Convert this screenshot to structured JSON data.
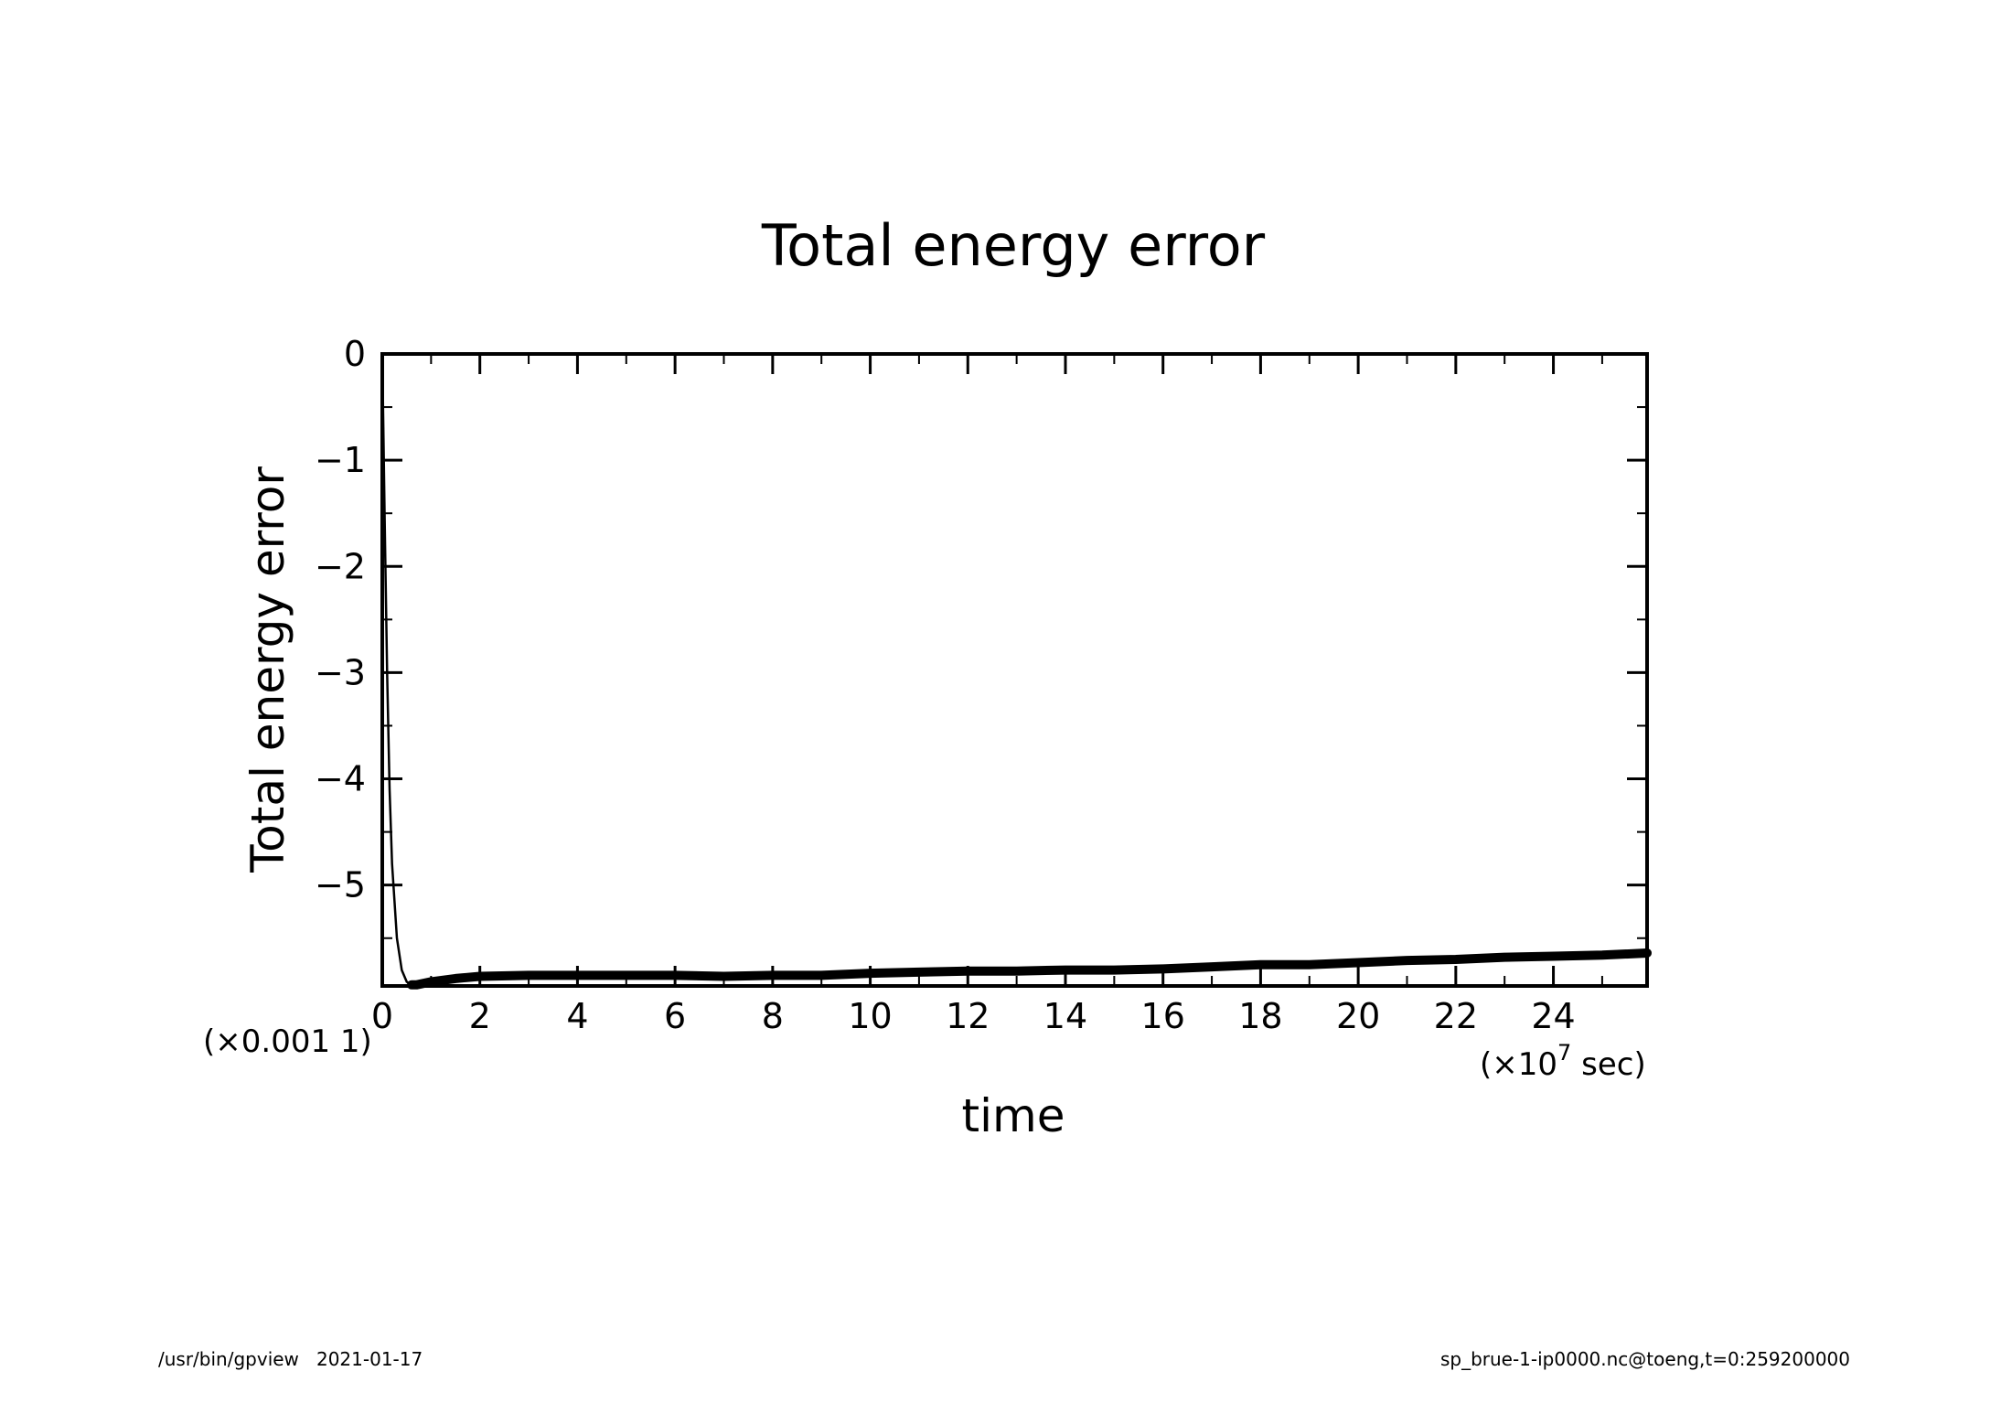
{
  "chart_data": {
    "type": "line",
    "title": "Total energy error",
    "xlabel": "time",
    "ylabel": "Total energy error",
    "x_scale_label": "(×10",
    "x_scale_exp": "7",
    "x_scale_unit": " sec)",
    "y_scale_label": "(×0.001  1)",
    "xlim": [
      0,
      25.92
    ],
    "ylim": [
      -5.95,
      0
    ],
    "x_ticks": [
      "0",
      "2",
      "4",
      "6",
      "8",
      "10",
      "12",
      "14",
      "16",
      "18",
      "20",
      "22",
      "24"
    ],
    "y_ticks": [
      "0",
      "−1",
      "−2",
      "−3",
      "−4",
      "−5"
    ],
    "x_tick_values": [
      0,
      2,
      4,
      6,
      8,
      10,
      12,
      14,
      16,
      18,
      20,
      22,
      24
    ],
    "y_tick_values": [
      0,
      -1,
      -2,
      -3,
      -4,
      -5
    ],
    "grid": false,
    "series": [
      {
        "x": [
          0,
          0.05,
          0.1,
          0.15,
          0.2,
          0.3,
          0.4,
          0.5,
          0.6,
          0.7,
          0.8,
          1.0,
          1.5,
          2,
          3,
          4,
          5,
          6,
          7,
          8,
          9,
          10,
          11,
          12,
          13,
          14,
          15,
          16,
          17,
          18,
          19,
          20,
          21,
          22,
          23,
          24,
          25,
          25.92
        ],
        "y": [
          0,
          -1.6,
          -3.0,
          -4.1,
          -4.8,
          -5.5,
          -5.8,
          -5.91,
          -5.94,
          -5.94,
          -5.93,
          -5.91,
          -5.88,
          -5.86,
          -5.85,
          -5.85,
          -5.85,
          -5.85,
          -5.86,
          -5.85,
          -5.85,
          -5.83,
          -5.82,
          -5.81,
          -5.81,
          -5.8,
          -5.8,
          -5.79,
          -5.77,
          -5.75,
          -5.75,
          -5.73,
          -5.71,
          -5.7,
          -5.68,
          -5.67,
          -5.66,
          -5.64
        ]
      }
    ],
    "color": "#000000"
  },
  "footer": {
    "left": "/usr/bin/gpview   2021-01-17",
    "right": "sp_brue-1-ip0000.nc@toeng,t=0:259200000"
  }
}
